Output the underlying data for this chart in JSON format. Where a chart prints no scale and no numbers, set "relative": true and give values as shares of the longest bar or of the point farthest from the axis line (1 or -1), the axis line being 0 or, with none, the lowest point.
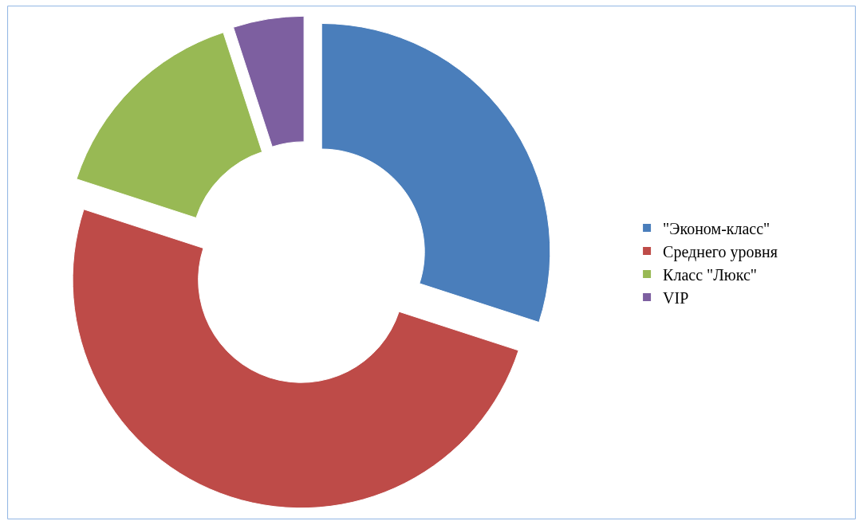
{
  "chart_data": {
    "type": "donut",
    "relative": true,
    "categories": [
      "\"Эконом-класс\"",
      "Среднего уровня",
      "Класс \"Люкс\"",
      "VIP"
    ],
    "values": [
      30,
      50,
      15,
      5
    ],
    "colors": [
      "#4a7ebb",
      "#be4b48",
      "#98b954",
      "#7d5fa0"
    ],
    "legend": "right"
  }
}
